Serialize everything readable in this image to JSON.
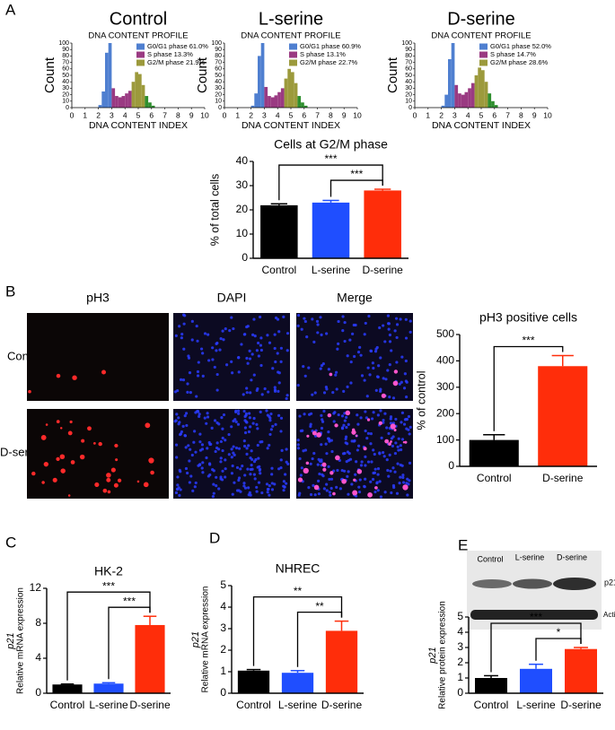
{
  "figure": {
    "panel_labels": [
      "A",
      "B",
      "C",
      "D",
      "E"
    ],
    "microscopy": {
      "columns": [
        "pH3",
        "DAPI",
        "Merge"
      ],
      "rows": [
        "Control",
        "D-serine"
      ]
    },
    "western_blot": {
      "lanes": [
        "Control",
        "L-serine",
        "D-serine"
      ],
      "bands": [
        "p21",
        "Actin"
      ]
    }
  },
  "chart_data": [
    {
      "type": "histogram",
      "title": "Control",
      "subtitle": "DNA CONTENT PROFILE",
      "xlabel": "DNA CONTENT INDEX",
      "ylabel": "Count",
      "xlim": [
        0,
        10
      ],
      "ylim": [
        0,
        100
      ],
      "xticks": [
        0,
        1,
        2,
        3,
        4,
        5,
        6,
        7,
        8,
        9,
        10
      ],
      "yticks": [
        0,
        10,
        20,
        30,
        40,
        50,
        60,
        70,
        80,
        90,
        100
      ],
      "series": [
        {
          "name": "G0/G1 phase 61.0%",
          "color": "#4f7fd0",
          "bins": [
            2.0,
            2.25,
            2.5,
            2.75,
            3.0
          ],
          "counts": [
            4,
            25,
            85,
            100
          ]
        },
        {
          "name": "S phase 13.3%",
          "color": "#9a3a82",
          "bins": [
            3.0,
            3.25,
            3.5,
            3.75,
            4.0,
            4.25,
            4.5
          ],
          "counts": [
            30,
            18,
            16,
            18,
            22,
            26
          ]
        },
        {
          "name": "G2/M phase 21.9%",
          "color": "#9c9a3c",
          "bins": [
            4.5,
            4.75,
            5.0,
            5.25,
            5.5
          ],
          "counts": [
            40,
            55,
            52,
            35
          ]
        },
        {
          "color": "#2f8f2f",
          "bins": [
            5.5,
            5.75,
            6.0,
            6.25
          ],
          "counts": [
            18,
            8,
            3
          ]
        }
      ]
    },
    {
      "type": "histogram",
      "title": "L-serine",
      "subtitle": "DNA CONTENT PROFILE",
      "xlabel": "DNA CONTENT INDEX",
      "ylabel": "Count",
      "xlim": [
        0,
        10
      ],
      "ylim": [
        0,
        100
      ],
      "xticks": [
        0,
        1,
        2,
        3,
        4,
        5,
        6,
        7,
        8,
        9,
        10
      ],
      "yticks": [
        0,
        10,
        20,
        30,
        40,
        50,
        60,
        70,
        80,
        90,
        100
      ],
      "series": [
        {
          "name": "G0/G1 phase 60.9%",
          "color": "#4f7fd0",
          "bins": [
            2.0,
            2.25,
            2.5,
            2.75,
            3.0
          ],
          "counts": [
            3,
            22,
            80,
            100
          ]
        },
        {
          "name": "S phase 13.1%",
          "color": "#9a3a82",
          "bins": [
            3.0,
            3.25,
            3.5,
            3.75,
            4.0,
            4.25,
            4.5
          ],
          "counts": [
            32,
            18,
            16,
            19,
            24,
            30
          ]
        },
        {
          "name": "G2/M phase 22.7%",
          "color": "#9c9a3c",
          "bins": [
            4.5,
            4.75,
            5.0,
            5.25,
            5.5
          ],
          "counts": [
            45,
            60,
            55,
            38
          ]
        },
        {
          "color": "#2f8f2f",
          "bins": [
            5.5,
            5.75,
            6.0,
            6.25
          ],
          "counts": [
            18,
            8,
            3
          ]
        }
      ]
    },
    {
      "type": "histogram",
      "title": "D-serine",
      "subtitle": "DNA CONTENT PROFILE",
      "xlabel": "DNA CONTENT INDEX",
      "ylabel": "Count",
      "xlim": [
        0,
        10
      ],
      "ylim": [
        0,
        100
      ],
      "xticks": [
        0,
        1,
        2,
        3,
        4,
        5,
        6,
        7,
        8,
        9,
        10
      ],
      "yticks": [
        0,
        10,
        20,
        30,
        40,
        50,
        60,
        70,
        80,
        90,
        100
      ],
      "series": [
        {
          "name": "G0/G1 phase 52.0%",
          "color": "#4f7fd0",
          "bins": [
            2.0,
            2.25,
            2.5,
            2.75,
            3.0
          ],
          "counts": [
            3,
            20,
            75,
            100
          ]
        },
        {
          "name": "S phase 14.7%",
          "color": "#9a3a82",
          "bins": [
            3.0,
            3.25,
            3.5,
            3.75,
            4.0,
            4.25,
            4.5
          ],
          "counts": [
            35,
            22,
            20,
            24,
            30,
            38
          ]
        },
        {
          "name": "G2/M phase 28.6%",
          "color": "#9c9a3c",
          "bins": [
            4.5,
            4.75,
            5.0,
            5.25,
            5.5
          ],
          "counts": [
            50,
            62,
            58,
            40
          ]
        },
        {
          "color": "#2f8f2f",
          "bins": [
            5.5,
            5.75,
            6.0,
            6.25
          ],
          "counts": [
            22,
            10,
            4
          ]
        }
      ]
    },
    {
      "type": "bar",
      "title": "Cells at G2/M phase",
      "ylabel": "% of total cells",
      "categories": [
        "Control",
        "L-serine",
        "D-serine"
      ],
      "values": [
        21.9,
        23,
        28
      ],
      "errors": [
        0.6,
        0.9,
        0.5
      ],
      "colors": [
        "#000000",
        "#1f4eff",
        "#ff2d0a"
      ],
      "ylim": [
        0,
        40
      ],
      "yticks": [
        0,
        10,
        20,
        30,
        40
      ],
      "annotations": [
        {
          "text": "***",
          "pair": [
            "Control",
            "D-serine"
          ]
        },
        {
          "text": "***",
          "pair": [
            "L-serine",
            "D-serine"
          ]
        }
      ]
    },
    {
      "type": "bar",
      "title": "pH3 positive cells",
      "ylabel": "% of control",
      "categories": [
        "Control",
        "D-serine"
      ],
      "values": [
        100,
        380
      ],
      "errors": [
        20,
        40
      ],
      "colors": [
        "#000000",
        "#ff2d0a"
      ],
      "ylim": [
        0,
        500
      ],
      "yticks": [
        0,
        100,
        200,
        300,
        400,
        500
      ],
      "annotations": [
        {
          "text": "***",
          "pair": [
            "Control",
            "D-serine"
          ]
        }
      ]
    },
    {
      "type": "bar",
      "title": "HK-2",
      "ylabel_gene": "p21",
      "ylabel": "Relative mRNA expression",
      "categories": [
        "Control",
        "L-serine",
        "D-serine"
      ],
      "values": [
        1,
        1.1,
        7.8
      ],
      "errors": [
        0.05,
        0.1,
        1.0
      ],
      "colors": [
        "#000000",
        "#1f4eff",
        "#ff2d0a"
      ],
      "ylim": [
        0,
        12
      ],
      "yticks": [
        0,
        4,
        8,
        12
      ],
      "annotations": [
        {
          "text": "***",
          "pair": [
            "Control",
            "D-serine"
          ]
        },
        {
          "text": "***",
          "pair": [
            "L-serine",
            "D-serine"
          ]
        }
      ]
    },
    {
      "type": "bar",
      "title": "NHREC",
      "ylabel_gene": "p21",
      "ylabel": "Relative mRNA expression",
      "categories": [
        "Control",
        "L-serine",
        "D-serine"
      ],
      "values": [
        1.05,
        0.95,
        2.9
      ],
      "errors": [
        0.05,
        0.1,
        0.45
      ],
      "colors": [
        "#000000",
        "#1f4eff",
        "#ff2d0a"
      ],
      "ylim": [
        0,
        5
      ],
      "yticks": [
        0,
        1,
        2,
        3,
        4,
        5
      ],
      "annotations": [
        {
          "text": "**",
          "pair": [
            "Control",
            "D-serine"
          ]
        },
        {
          "text": "**",
          "pair": [
            "L-serine",
            "D-serine"
          ]
        }
      ]
    },
    {
      "type": "bar",
      "ylabel_gene": "p21",
      "ylabel": "Relative protein expression",
      "categories": [
        "Control",
        "L-serine",
        "D-serine"
      ],
      "values": [
        1.0,
        1.6,
        2.9
      ],
      "errors": [
        0.15,
        0.3,
        0.1
      ],
      "colors": [
        "#000000",
        "#1f4eff",
        "#ff2d0a"
      ],
      "ylim": [
        0,
        5
      ],
      "yticks": [
        0,
        1,
        2,
        3,
        4,
        5
      ],
      "annotations": [
        {
          "text": "***",
          "pair": [
            "Control",
            "D-serine"
          ]
        },
        {
          "text": "*",
          "pair": [
            "L-serine",
            "D-serine"
          ]
        }
      ]
    }
  ]
}
